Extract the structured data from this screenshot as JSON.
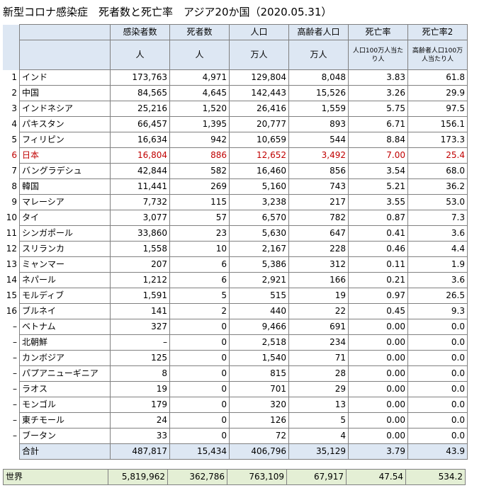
{
  "title": "新型コロナ感染症　死者数と死亡率　アジア20か国（2020.05.31）",
  "headers": {
    "row1": [
      "感染者数",
      "死者数",
      "人口",
      "高齢者人口",
      "死亡率",
      "死亡率2"
    ],
    "row2": [
      "人",
      "人",
      "万人",
      "万人",
      "人口100万人当たり人",
      "高齢者人口100万人当たり人"
    ]
  },
  "rows": [
    {
      "no": "1",
      "name": "インド",
      "cases": "173,763",
      "deaths": "4,971",
      "pop": "129,804",
      "elderly": "8,048",
      "rate": "3.83",
      "rate2": "61.8"
    },
    {
      "no": "2",
      "name": "中国",
      "cases": "84,565",
      "deaths": "4,645",
      "pop": "142,443",
      "elderly": "15,526",
      "rate": "3.26",
      "rate2": "29.9"
    },
    {
      "no": "3",
      "name": "インドネシア",
      "cases": "25,216",
      "deaths": "1,520",
      "pop": "26,416",
      "elderly": "1,559",
      "rate": "5.75",
      "rate2": "97.5"
    },
    {
      "no": "4",
      "name": "パキスタン",
      "cases": "66,457",
      "deaths": "1,395",
      "pop": "20,777",
      "elderly": "893",
      "rate": "6.71",
      "rate2": "156.1"
    },
    {
      "no": "5",
      "name": "フィリピン",
      "cases": "16,634",
      "deaths": "942",
      "pop": "10,659",
      "elderly": "544",
      "rate": "8.84",
      "rate2": "173.3"
    },
    {
      "no": "6",
      "name": "日本",
      "cases": "16,804",
      "deaths": "886",
      "pop": "12,652",
      "elderly": "3,492",
      "rate": "7.00",
      "rate2": "25.4",
      "highlight": true
    },
    {
      "no": "7",
      "name": "バングラデシュ",
      "cases": "42,844",
      "deaths": "582",
      "pop": "16,460",
      "elderly": "856",
      "rate": "3.54",
      "rate2": "68.0"
    },
    {
      "no": "8",
      "name": "韓国",
      "cases": "11,441",
      "deaths": "269",
      "pop": "5,160",
      "elderly": "743",
      "rate": "5.21",
      "rate2": "36.2"
    },
    {
      "no": "9",
      "name": "マレーシア",
      "cases": "7,732",
      "deaths": "115",
      "pop": "3,238",
      "elderly": "217",
      "rate": "3.55",
      "rate2": "53.0"
    },
    {
      "no": "10",
      "name": "タイ",
      "cases": "3,077",
      "deaths": "57",
      "pop": "6,570",
      "elderly": "782",
      "rate": "0.87",
      "rate2": "7.3"
    },
    {
      "no": "11",
      "name": "シンガポール",
      "cases": "33,860",
      "deaths": "23",
      "pop": "5,630",
      "elderly": "647",
      "rate": "0.41",
      "rate2": "3.6"
    },
    {
      "no": "12",
      "name": "スリランカ",
      "cases": "1,558",
      "deaths": "10",
      "pop": "2,167",
      "elderly": "228",
      "rate": "0.46",
      "rate2": "4.4"
    },
    {
      "no": "13",
      "name": "ミャンマー",
      "cases": "207",
      "deaths": "6",
      "pop": "5,386",
      "elderly": "312",
      "rate": "0.11",
      "rate2": "1.9"
    },
    {
      "no": "14",
      "name": "ネパール",
      "cases": "1,212",
      "deaths": "6",
      "pop": "2,921",
      "elderly": "166",
      "rate": "0.21",
      "rate2": "3.6"
    },
    {
      "no": "15",
      "name": "モルディブ",
      "cases": "1,591",
      "deaths": "5",
      "pop": "515",
      "elderly": "19",
      "rate": "0.97",
      "rate2": "26.5"
    },
    {
      "no": "16",
      "name": "ブルネイ",
      "cases": "141",
      "deaths": "2",
      "pop": "440",
      "elderly": "22",
      "rate": "0.45",
      "rate2": "9.3"
    },
    {
      "no": "–",
      "name": "ベトナム",
      "cases": "327",
      "deaths": "0",
      "pop": "9,466",
      "elderly": "691",
      "rate": "0.00",
      "rate2": "0.0"
    },
    {
      "no": "–",
      "name": "北朝鮮",
      "cases": "–",
      "deaths": "0",
      "pop": "2,518",
      "elderly": "234",
      "rate": "0.00",
      "rate2": "0.0"
    },
    {
      "no": "–",
      "name": "カンボジア",
      "cases": "125",
      "deaths": "0",
      "pop": "1,540",
      "elderly": "71",
      "rate": "0.00",
      "rate2": "0.0"
    },
    {
      "no": "–",
      "name": "パプアニューギニア",
      "cases": "8",
      "deaths": "0",
      "pop": "815",
      "elderly": "28",
      "rate": "0.00",
      "rate2": "0.0"
    },
    {
      "no": "–",
      "name": "ラオス",
      "cases": "19",
      "deaths": "0",
      "pop": "701",
      "elderly": "29",
      "rate": "0.00",
      "rate2": "0.0"
    },
    {
      "no": "–",
      "name": "モンゴル",
      "cases": "179",
      "deaths": "0",
      "pop": "320",
      "elderly": "13",
      "rate": "0.00",
      "rate2": "0.0"
    },
    {
      "no": "–",
      "name": "東チモール",
      "cases": "24",
      "deaths": "0",
      "pop": "126",
      "elderly": "5",
      "rate": "0.00",
      "rate2": "0.0"
    },
    {
      "no": "–",
      "name": "ブータン",
      "cases": "33",
      "deaths": "0",
      "pop": "72",
      "elderly": "4",
      "rate": "0.00",
      "rate2": "0.0"
    }
  ],
  "total": {
    "name": "合計",
    "cases": "487,817",
    "deaths": "15,434",
    "pop": "406,796",
    "elderly": "35,129",
    "rate": "3.79",
    "rate2": "43.9"
  },
  "world": {
    "name": "世界",
    "cases": "5,819,962",
    "deaths": "362,786",
    "pop": "763,109",
    "elderly": "67,917",
    "rate": "47.54",
    "rate2": "534.2"
  },
  "colors": {
    "header_bg": "#dde7f3",
    "world_bg": "#e4efd5",
    "highlight_text": "#c00000"
  }
}
